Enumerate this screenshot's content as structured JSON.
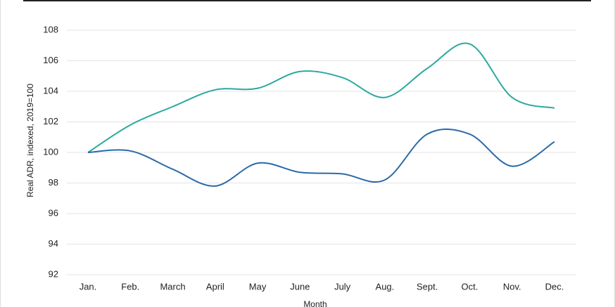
{
  "chart_data": {
    "type": "line",
    "y_label": "Real ADR, indexed, 2019=100",
    "x_label": "Month",
    "categories": [
      "Jan.",
      "Feb.",
      "March",
      "April",
      "May",
      "June",
      "July",
      "Aug.",
      "Sept.",
      "Oct.",
      "Nov.",
      "Dec."
    ],
    "series": [
      {
        "color": "#2aa9a0",
        "values": [
          100,
          101.8,
          103,
          104.1,
          104.2,
          105.3,
          104.9,
          103.6,
          105.5,
          107.1,
          103.6,
          102.9
        ]
      },
      {
        "color": "#2a6aa8",
        "values": [
          100,
          100.1,
          98.9,
          97.8,
          99.3,
          98.7,
          98.6,
          98.2,
          101.2,
          101.2,
          99.1,
          100.7
        ]
      }
    ],
    "ylim": [
      92,
      108
    ],
    "yticks": [
      92,
      94,
      96,
      98,
      100,
      102,
      104,
      106,
      108
    ],
    "grid": true
  }
}
